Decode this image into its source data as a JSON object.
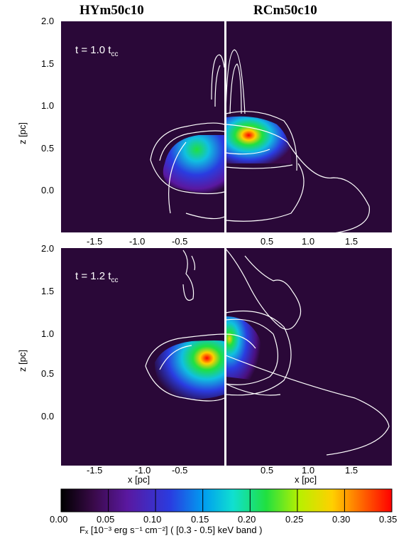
{
  "titles": {
    "left": "HYm50c10",
    "right": "RCm50c10"
  },
  "panels": [
    {
      "time_label": "t = 1.0 t",
      "time_sub": "cc"
    },
    {
      "time_label": "t = 1.2 t",
      "time_sub": "cc"
    }
  ],
  "axes": {
    "y_label": "z [pc]",
    "y_ticks": [
      "2.0",
      "1.5",
      "1.0",
      "0.5",
      "0.0"
    ],
    "x_ticks_left": [
      "-1.5",
      "-1.0",
      "-0.5"
    ],
    "x_ticks_right": [
      "0.5",
      "1.0",
      "1.5"
    ],
    "x_label": "x [pc]"
  },
  "colorbar": {
    "ticks": [
      "0.00",
      "0.05",
      "0.10",
      "0.15",
      "0.20",
      "0.25",
      "0.30",
      "0.35"
    ],
    "label": "Fₓ [10⁻³ erg s⁻¹ cm⁻²] ( [0.3 - 0.5] keV band )",
    "colors": [
      "#000000",
      "#3a0a4a",
      "#5a18a0",
      "#2a3ce0",
      "#009cf0",
      "#10e0d0",
      "#20e040",
      "#b8f000",
      "#ffd000",
      "#ff5a00",
      "#ff0000"
    ]
  },
  "chart_data": {
    "type": "heatmap",
    "panels": [
      {
        "left_title": "HYm50c10",
        "right_title": "RCm50c10",
        "time": "t = 1.0 tcc"
      },
      {
        "left_title": "HYm50c10",
        "right_title": "RCm50c10",
        "time": "t = 1.2 tcc"
      }
    ],
    "xlim": [
      -2.0,
      2.0
    ],
    "ylim": [
      -0.5,
      2.0
    ],
    "colorbar_range": [
      0.0,
      0.35
    ]
  }
}
